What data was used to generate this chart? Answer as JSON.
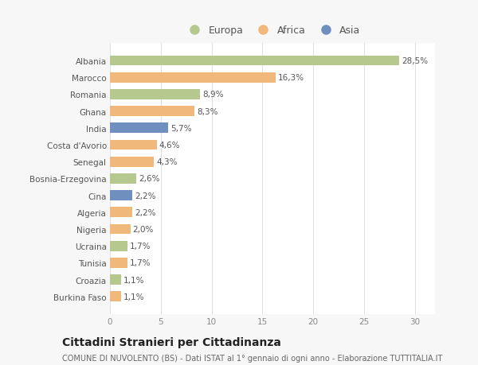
{
  "categories": [
    "Albania",
    "Marocco",
    "Romania",
    "Ghana",
    "India",
    "Costa d'Avorio",
    "Senegal",
    "Bosnia-Erzegovina",
    "Cina",
    "Algeria",
    "Nigeria",
    "Ucraina",
    "Tunisia",
    "Croazia",
    "Burkina Faso"
  ],
  "values": [
    28.5,
    16.3,
    8.9,
    8.3,
    5.7,
    4.6,
    4.3,
    2.6,
    2.2,
    2.2,
    2.0,
    1.7,
    1.7,
    1.1,
    1.1
  ],
  "labels": [
    "28,5%",
    "16,3%",
    "8,9%",
    "8,3%",
    "5,7%",
    "4,6%",
    "4,3%",
    "2,6%",
    "2,2%",
    "2,2%",
    "2,0%",
    "1,7%",
    "1,7%",
    "1,1%",
    "1,1%"
  ],
  "continents": [
    "Europa",
    "Africa",
    "Europa",
    "Africa",
    "Asia",
    "Africa",
    "Africa",
    "Europa",
    "Asia",
    "Africa",
    "Africa",
    "Europa",
    "Africa",
    "Europa",
    "Africa"
  ],
  "colors": {
    "Europa": "#b5c98e",
    "Africa": "#f0b87a",
    "Asia": "#6f8fbf"
  },
  "legend_labels": [
    "Europa",
    "Africa",
    "Asia"
  ],
  "legend_colors": [
    "#b5c98e",
    "#f0b87a",
    "#6f8fbf"
  ],
  "xlim": [
    0,
    32
  ],
  "xticks": [
    0,
    5,
    10,
    15,
    20,
    25,
    30
  ],
  "title": "Cittadini Stranieri per Cittadinanza",
  "subtitle": "COMUNE DI NUVOLENTO (BS) - Dati ISTAT al 1° gennaio di ogni anno - Elaborazione TUTTITALIA.IT",
  "bg_color": "#f7f7f7",
  "plot_bg_color": "#ffffff",
  "label_fontsize": 7.5,
  "bar_label_fontsize": 7.5,
  "title_fontsize": 10,
  "subtitle_fontsize": 7
}
